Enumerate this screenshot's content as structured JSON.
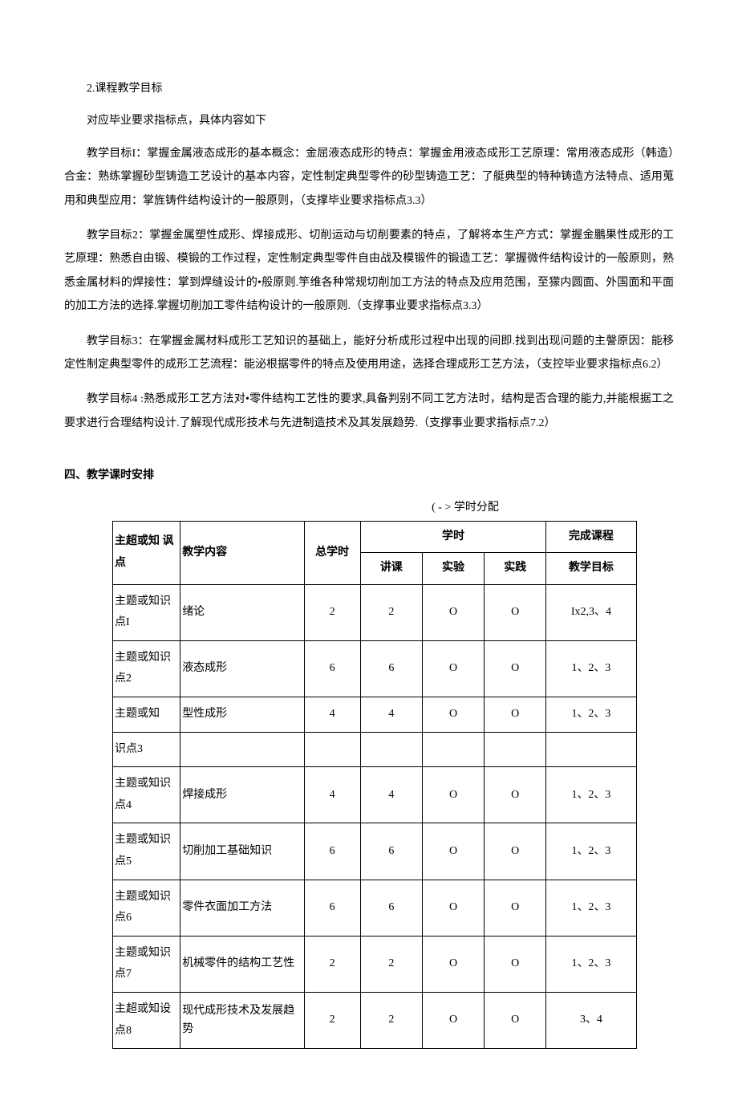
{
  "heading_course_goals": "2.课程教学目标",
  "subtext_requirements": "对应毕业要求指标点，具体内容如下",
  "para_goal1": "教学目标I：掌握金属液态成形的基本概念：金屈液态成形的特点：掌握金用液态成形工艺原理：常用液态成形（韩造）合金：熟练掌握砂型铸造工艺设计的基本内容，定性制定典型零件的砂型铸造工艺：了艇典型的特种铸造方法特点、适用蒐用和典型应用：掌旌铸件结构设计的一般原则，（支撑毕业要求指标点3.3）",
  "para_goal2": "教学目标2：掌握金属塑性成形、焊接成形、切削运动与切削要素的特点，了解将本生产方式：掌握金鵬果性成形的工艺原理：熟悉自由锻、模锻的工作过程，定性制定典型零件自由战及模锻件的锻造工艺：掌握微件结构设计的一般原则，熟悉金属材料的焊接性：掌到焊缝设计的•般原则.竽维各种常规切削加工方法的特点及应用范围，至獴内圆面、外国面和平面的加工方法的选择.掌握切削加工零件结构设计的一般原则.（支撑事业要求指标点3.3）",
  "para_goal3": "教学目标3：在掌握金属材料成形工艺知识的基础上，能好分析成形过程中出现的间即.找到出现问题的主謦原因：能移定性制定典型零件的成形工艺流程：能泌根据零件的特点及使用用途，选择合理成形工艺方法，（支控毕业要求指标点6.2）",
  "para_goal4": "教学目标4 :熟悉成形工艺方法对•零件结构工艺性的要求,具备判别不同工艺方法时，结构是否合理的能力,并能根据工之要求进行合理结构设计.了解现代成形技术与先进制造技术及其发展趋势.（支撑事业要求指标点7.2）",
  "section4_title": "四、教学课时安排",
  "table_caption": "( - > 学时分配",
  "table": {
    "headers": {
      "topic": "主超或知\n讽点",
      "content": "教学内容",
      "total": "总学时",
      "hours": "学时",
      "lecture": "讲课",
      "experiment": "实验",
      "practice": "实践",
      "complete": "完成课程",
      "goal": "教学目标"
    },
    "rows": [
      {
        "topic": "主题或知识点I",
        "content": "绪论",
        "total": "2",
        "lecture": "2",
        "exp": "O",
        "prac": "O",
        "goal": "Ix2,3、4"
      },
      {
        "topic": "主题或知识点2",
        "content": "液态成形",
        "total": "6",
        "lecture": "6",
        "exp": "O",
        "prac": "O",
        "goal": "1、2、3"
      },
      {
        "topic_split": "主题或知",
        "content_split": "型性成形",
        "total_split": "4",
        "lecture_split": "4",
        "exp_split": "O",
        "prac_split": "O",
        "goal_split": "1、2、3",
        "topic_btm": "识点3"
      },
      {
        "topic": "主题或知识点4",
        "content": "焊接成形",
        "total": "4",
        "lecture": "4",
        "exp": "O",
        "prac": "O",
        "goal": "1、2、3"
      },
      {
        "topic": "主题或知识点5",
        "content": "切削加工基础知识",
        "total": "6",
        "lecture": "6",
        "exp": "O",
        "prac": "O",
        "goal": "1、2、3"
      },
      {
        "topic": "主题或知识点6",
        "content": "零件衣面加工方法",
        "total": "6",
        "lecture": "6",
        "exp": "O",
        "prac": "O",
        "goal": "1、2、3"
      },
      {
        "topic": "主题或知识点7",
        "content": "机械零件的结构工艺性",
        "total": "2",
        "lecture": "2",
        "exp": "O",
        "prac": "O",
        "goal": "1、2、3"
      },
      {
        "topic": "主超或知设点8",
        "content": "现代成形技术及发展趋势",
        "total": "2",
        "lecture": "2",
        "exp": "O",
        "prac": "O",
        "goal": "3、4"
      }
    ]
  }
}
